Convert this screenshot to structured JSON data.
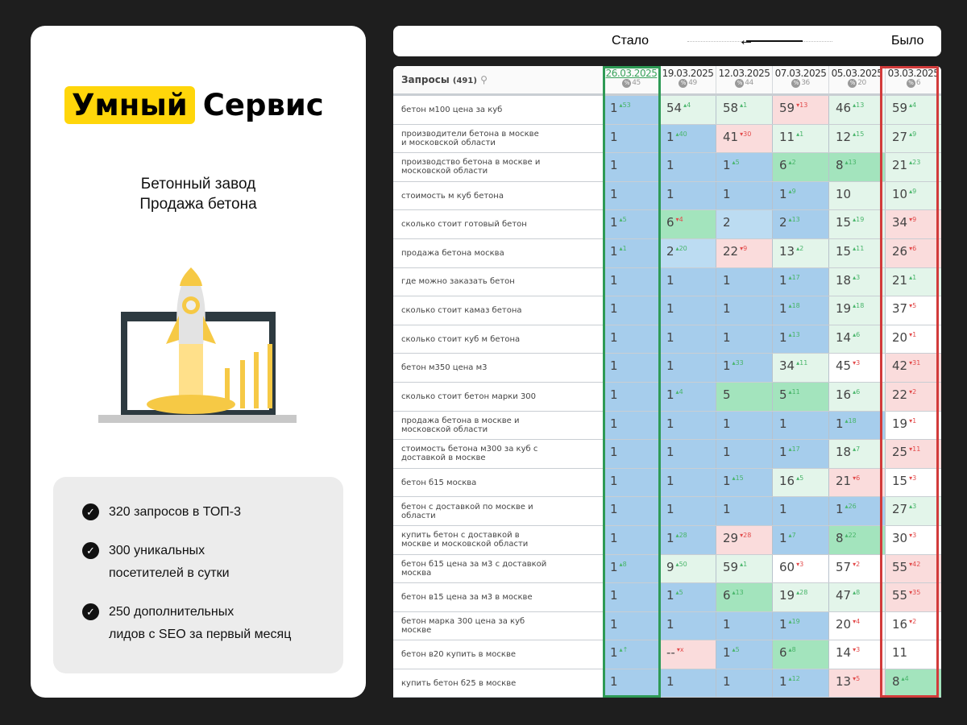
{
  "brand": {
    "logo_highlight": "Умный",
    "logo_rest": "Сервис",
    "subtitle_1": "Бетонный завод",
    "subtitle_2": "Продажа бетона"
  },
  "benefits": [
    {
      "line1": "320 запросов в ТОП-3",
      "line2": ""
    },
    {
      "line1": "300 уникальных",
      "line2": "посетителей в сутки"
    },
    {
      "line1": "250 дополнительных",
      "line2": "лидов с SEO за первый месяц"
    }
  ],
  "compare_bar": {
    "now_label": "Стало",
    "was_label": "Было"
  },
  "colors": {
    "accent": "#ffd60a",
    "now_frame": "#2e9a55",
    "was_frame": "#d23b3b",
    "top1": "#a6cdec",
    "improved": "#a3e4bd",
    "worse": "#fadcdc"
  },
  "table": {
    "header": {
      "title": "Запросы",
      "count": "(491)",
      "search_icon": "search-icon"
    },
    "dates": [
      {
        "date": "26.03.2025",
        "vis": "45"
      },
      {
        "date": "19.03.2025",
        "vis": "49"
      },
      {
        "date": "12.03.2025",
        "vis": "44"
      },
      {
        "date": "07.03.2025",
        "vis": "36"
      },
      {
        "date": "05.03.2025",
        "vis": "20"
      },
      {
        "date": "03.03.2025",
        "vis": "6"
      }
    ],
    "rows": [
      {
        "query": "бетон м100 цена за куб",
        "cells": [
          [
            "1",
            "53",
            "up",
            "b"
          ],
          [
            "54",
            "4",
            "up",
            "lg"
          ],
          [
            "58",
            "1",
            "up",
            "lg"
          ],
          [
            "59",
            "13",
            "down",
            "r"
          ],
          [
            "46",
            "13",
            "up",
            "lg"
          ],
          [
            "59",
            "4",
            "up",
            "lg"
          ]
        ]
      },
      {
        "query": "производители бетона в москве\nи московской области",
        "cells": [
          [
            "1",
            "",
            "",
            "b"
          ],
          [
            "1",
            "40",
            "up",
            "b"
          ],
          [
            "41",
            "30",
            "down",
            "r"
          ],
          [
            "11",
            "1",
            "up",
            "lg"
          ],
          [
            "12",
            "15",
            "up",
            "lg"
          ],
          [
            "27",
            "9",
            "up",
            "lg"
          ]
        ]
      },
      {
        "query": "производство бетона в москве и\nмосковской области",
        "cells": [
          [
            "1",
            "",
            "",
            "b"
          ],
          [
            "1",
            "",
            "",
            "b"
          ],
          [
            "1",
            "5",
            "up",
            "b"
          ],
          [
            "6",
            "2",
            "up",
            "g"
          ],
          [
            "8",
            "13",
            "up",
            "g"
          ],
          [
            "21",
            "23",
            "up",
            "lg"
          ]
        ]
      },
      {
        "query": "стоимость м куб бетона",
        "cells": [
          [
            "1",
            "",
            "",
            "b"
          ],
          [
            "1",
            "",
            "",
            "b"
          ],
          [
            "1",
            "",
            "",
            "b"
          ],
          [
            "1",
            "9",
            "up",
            "b"
          ],
          [
            "10",
            "",
            "",
            "lg"
          ],
          [
            "10",
            "9",
            "up",
            "lg"
          ]
        ]
      },
      {
        "query": "сколько стоит готовый бетон",
        "cells": [
          [
            "1",
            "5",
            "up",
            "b"
          ],
          [
            "6",
            "4",
            "down",
            "g"
          ],
          [
            "2",
            "",
            "",
            "lb"
          ],
          [
            "2",
            "13",
            "up",
            "b"
          ],
          [
            "15",
            "19",
            "up",
            "lg"
          ],
          [
            "34",
            "9",
            "down",
            "r"
          ]
        ]
      },
      {
        "query": "продажа бетона москва",
        "cells": [
          [
            "1",
            "1",
            "up",
            "b"
          ],
          [
            "2",
            "20",
            "up",
            "lb"
          ],
          [
            "22",
            "9",
            "down",
            "r"
          ],
          [
            "13",
            "2",
            "up",
            "lg"
          ],
          [
            "15",
            "11",
            "up",
            "lg"
          ],
          [
            "26",
            "6",
            "down",
            "r"
          ]
        ]
      },
      {
        "query": "где можно заказать бетон",
        "cells": [
          [
            "1",
            "",
            "",
            "b"
          ],
          [
            "1",
            "",
            "",
            "b"
          ],
          [
            "1",
            "",
            "",
            "b"
          ],
          [
            "1",
            "17",
            "up",
            "b"
          ],
          [
            "18",
            "3",
            "up",
            "lg"
          ],
          [
            "21",
            "1",
            "up",
            "lg"
          ]
        ]
      },
      {
        "query": "сколько стоит камаз бетона",
        "cells": [
          [
            "1",
            "",
            "",
            "b"
          ],
          [
            "1",
            "",
            "",
            "b"
          ],
          [
            "1",
            "",
            "",
            "b"
          ],
          [
            "1",
            "18",
            "up",
            "b"
          ],
          [
            "19",
            "18",
            "up",
            "lg"
          ],
          [
            "37",
            "5",
            "down",
            "w"
          ]
        ]
      },
      {
        "query": "сколько стоит куб м бетона",
        "cells": [
          [
            "1",
            "",
            "",
            "b"
          ],
          [
            "1",
            "",
            "",
            "b"
          ],
          [
            "1",
            "",
            "",
            "b"
          ],
          [
            "1",
            "13",
            "up",
            "b"
          ],
          [
            "14",
            "6",
            "up",
            "lg"
          ],
          [
            "20",
            "1",
            "down",
            "w"
          ]
        ]
      },
      {
        "query": "бетон м350 цена м3",
        "cells": [
          [
            "1",
            "",
            "",
            "b"
          ],
          [
            "1",
            "",
            "",
            "b"
          ],
          [
            "1",
            "33",
            "up",
            "b"
          ],
          [
            "34",
            "11",
            "up",
            "lg"
          ],
          [
            "45",
            "3",
            "down",
            "w"
          ],
          [
            "42",
            "31",
            "down",
            "r"
          ]
        ]
      },
      {
        "query": "сколько стоит бетон марки 300",
        "cells": [
          [
            "1",
            "",
            "",
            "b"
          ],
          [
            "1",
            "4",
            "up",
            "b"
          ],
          [
            "5",
            "",
            "",
            "g"
          ],
          [
            "5",
            "11",
            "up",
            "g"
          ],
          [
            "16",
            "6",
            "up",
            "lg"
          ],
          [
            "22",
            "2",
            "down",
            "r"
          ]
        ]
      },
      {
        "query": "продажа бетона в москве и\nмосковской области",
        "cells": [
          [
            "1",
            "",
            "",
            "b"
          ],
          [
            "1",
            "",
            "",
            "b"
          ],
          [
            "1",
            "",
            "",
            "b"
          ],
          [
            "1",
            "",
            "",
            "b"
          ],
          [
            "1",
            "18",
            "up",
            "b"
          ],
          [
            "19",
            "1",
            "down",
            "w"
          ]
        ]
      },
      {
        "query": "стоимость бетона м300 за куб с\nдоставкой в москве",
        "cells": [
          [
            "1",
            "",
            "",
            "b"
          ],
          [
            "1",
            "",
            "",
            "b"
          ],
          [
            "1",
            "",
            "",
            "b"
          ],
          [
            "1",
            "17",
            "up",
            "b"
          ],
          [
            "18",
            "7",
            "up",
            "lg"
          ],
          [
            "25",
            "11",
            "down",
            "r"
          ]
        ]
      },
      {
        "query": "бетон б15 москва",
        "cells": [
          [
            "1",
            "",
            "",
            "b"
          ],
          [
            "1",
            "",
            "",
            "b"
          ],
          [
            "1",
            "15",
            "up",
            "b"
          ],
          [
            "16",
            "5",
            "up",
            "lg"
          ],
          [
            "21",
            "6",
            "down",
            "r"
          ],
          [
            "15",
            "3",
            "down",
            "w"
          ]
        ]
      },
      {
        "query": "бетон с доставкой по москве и\nобласти",
        "cells": [
          [
            "1",
            "",
            "",
            "b"
          ],
          [
            "1",
            "",
            "",
            "b"
          ],
          [
            "1",
            "",
            "",
            "b"
          ],
          [
            "1",
            "",
            "",
            "b"
          ],
          [
            "1",
            "26",
            "up",
            "b"
          ],
          [
            "27",
            "3",
            "up",
            "lg"
          ]
        ]
      },
      {
        "query": "купить бетон с доставкой в\nмоскве и московской области",
        "cells": [
          [
            "1",
            "",
            "",
            "b"
          ],
          [
            "1",
            "28",
            "up",
            "b"
          ],
          [
            "29",
            "28",
            "down",
            "r"
          ],
          [
            "1",
            "7",
            "up",
            "b"
          ],
          [
            "8",
            "22",
            "up",
            "g"
          ],
          [
            "30",
            "3",
            "down",
            "w"
          ]
        ]
      },
      {
        "query": "бетон б15 цена за м3 с доставкой\nмосква",
        "cells": [
          [
            "1",
            "8",
            "up",
            "b"
          ],
          [
            "9",
            "50",
            "up",
            "lg"
          ],
          [
            "59",
            "1",
            "up",
            "lg"
          ],
          [
            "60",
            "3",
            "down",
            "w"
          ],
          [
            "57",
            "2",
            "down",
            "w"
          ],
          [
            "55",
            "42",
            "down",
            "r"
          ]
        ]
      },
      {
        "query": "бетон в15 цена за м3 в москве",
        "cells": [
          [
            "1",
            "",
            "",
            "b"
          ],
          [
            "1",
            "5",
            "up",
            "b"
          ],
          [
            "6",
            "13",
            "up",
            "g"
          ],
          [
            "19",
            "28",
            "up",
            "lg"
          ],
          [
            "47",
            "8",
            "up",
            "lg"
          ],
          [
            "55",
            "35",
            "down",
            "r"
          ]
        ]
      },
      {
        "query": "бетон марка 300 цена за куб\nмоскве",
        "cells": [
          [
            "1",
            "",
            "",
            "b"
          ],
          [
            "1",
            "",
            "",
            "b"
          ],
          [
            "1",
            "",
            "",
            "b"
          ],
          [
            "1",
            "19",
            "up",
            "b"
          ],
          [
            "20",
            "4",
            "down",
            "w"
          ],
          [
            "16",
            "2",
            "down",
            "w"
          ]
        ]
      },
      {
        "query": "бетон в20 купить в москве",
        "cells": [
          [
            "1",
            "↑",
            "up",
            "b"
          ],
          [
            "--",
            "x",
            "down",
            "r"
          ],
          [
            "1",
            "5",
            "up",
            "b"
          ],
          [
            "6",
            "8",
            "up",
            "g"
          ],
          [
            "14",
            "3",
            "down",
            "w"
          ],
          [
            "11",
            "",
            "",
            "w"
          ]
        ]
      },
      {
        "query": "купить бетон б25 в москве",
        "cells": [
          [
            "1",
            "",
            "",
            "b"
          ],
          [
            "1",
            "",
            "",
            "b"
          ],
          [
            "1",
            "",
            "",
            "b"
          ],
          [
            "1",
            "12",
            "up",
            "b"
          ],
          [
            "13",
            "5",
            "down",
            "r"
          ],
          [
            "8",
            "4",
            "up",
            "g"
          ]
        ]
      }
    ]
  }
}
